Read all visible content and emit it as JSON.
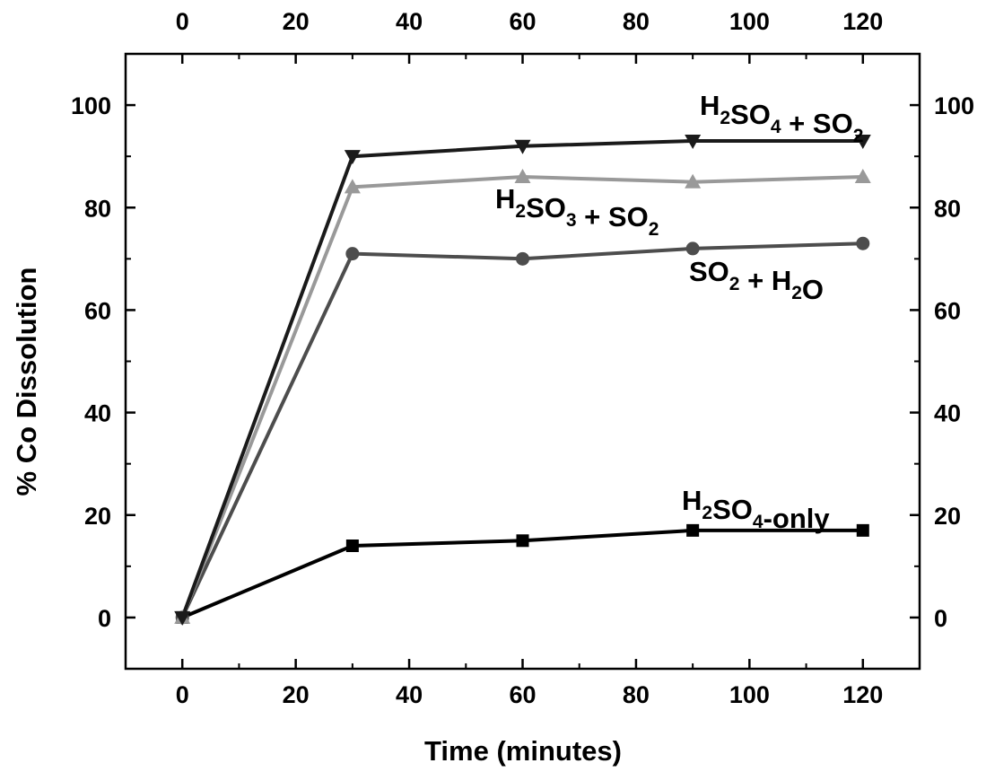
{
  "chart_data": {
    "type": "line",
    "title": "",
    "xlabel": "Time (minutes)",
    "ylabel": "% Co Dissolution",
    "xlim": [
      -10,
      130
    ],
    "ylim": [
      -10,
      110
    ],
    "xticks": [
      0,
      20,
      40,
      60,
      80,
      100,
      120
    ],
    "yticks": [
      0,
      20,
      40,
      60,
      80,
      100
    ],
    "x_tick_labels": [
      "0",
      "20",
      "40",
      "60",
      "80",
      "100",
      "120"
    ],
    "y_tick_labels": [
      "0",
      "20",
      "40",
      "60",
      "80",
      "100"
    ],
    "top_tick_labels": [
      "0",
      "20",
      "40",
      "60",
      "80",
      "100",
      "120"
    ],
    "right_tick_labels": [
      "0",
      "20",
      "40",
      "60",
      "80",
      "100"
    ],
    "grid": false,
    "x": [
      0,
      30,
      60,
      90,
      120
    ],
    "series": [
      {
        "name": "H2SO4 + SO2",
        "values": [
          0,
          90,
          92,
          93,
          93
        ],
        "color": "#1a1a1a",
        "marker": "triangle-down"
      },
      {
        "name": "H2SO3 + SO2",
        "values": [
          0,
          84,
          86,
          85,
          86
        ],
        "color": "#999999",
        "marker": "triangle-up"
      },
      {
        "name": "SO2 + H2O",
        "values": [
          0,
          71,
          70,
          72,
          73
        ],
        "color": "#4d4d4d",
        "marker": "circle"
      },
      {
        "name": "H2SO4-only",
        "values": [
          0,
          14,
          15,
          17,
          17
        ],
        "color": "#000000",
        "marker": "square"
      }
    ],
    "labels": [
      {
        "parts": [
          [
            "H",
            ""
          ],
          [
            "2",
            "sub"
          ],
          [
            "SO",
            ""
          ],
          [
            "4",
            "sub"
          ],
          [
            " + SO",
            ""
          ],
          [
            "2",
            "sub"
          ]
        ]
      },
      {
        "parts": [
          [
            "H",
            ""
          ],
          [
            "2",
            "sub"
          ],
          [
            "SO",
            ""
          ],
          [
            "3",
            "sub"
          ],
          [
            " + SO",
            ""
          ],
          [
            "2",
            "sub"
          ]
        ]
      },
      {
        "parts": [
          [
            "SO",
            ""
          ],
          [
            "2",
            "sub"
          ],
          [
            " + H",
            ""
          ],
          [
            "2",
            "sub"
          ],
          [
            "O",
            ""
          ]
        ]
      },
      {
        "parts": [
          [
            "H",
            ""
          ],
          [
            "2",
            "sub"
          ],
          [
            "SO",
            ""
          ],
          [
            "4",
            "sub"
          ],
          [
            "-only",
            ""
          ]
        ]
      }
    ]
  }
}
